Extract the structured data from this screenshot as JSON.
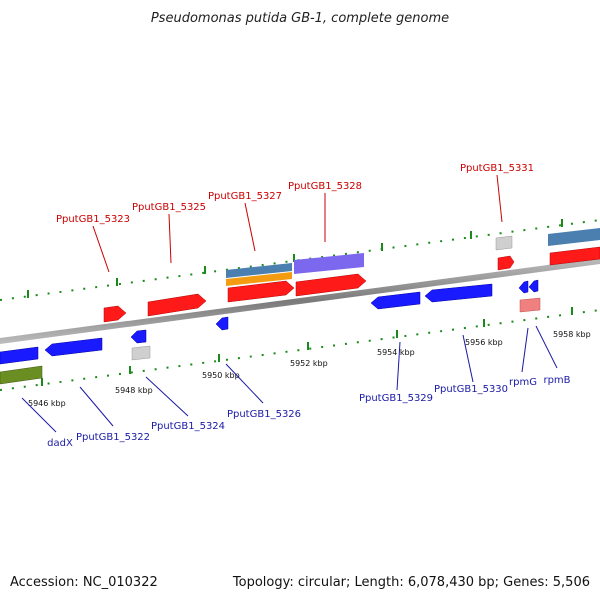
{
  "header": {
    "title": "Pseudomonas putida GB-1, complete genome"
  },
  "footer": {
    "accession": "Accession: NC_010322",
    "summary": "Topology: circular; Length: 6,078,430 bp; Genes: 5,506"
  },
  "ticks": [
    "5946 kbp",
    "5948 kbp",
    "5950 kbp",
    "5952 kbp",
    "5954 kbp",
    "5956 kbp",
    "5958 kbp"
  ],
  "genes_top": [
    "PputGB1_5323",
    "PputGB1_5325",
    "PputGB1_5327",
    "PputGB1_5328",
    "PputGB1_5331"
  ],
  "genes_bottom": [
    "dadX",
    "PputGB1_5322",
    "PputGB1_5324",
    "PputGB1_5326",
    "PputGB1_5329",
    "PputGB1_5330",
    "rpmG",
    "rpmB"
  ],
  "colors": {
    "forward_gene": "#ff1a1a",
    "reverse_gene": "#1a1aff",
    "backbone": "#8a8a8a",
    "tick": "#1a8a1a",
    "label_red": "#cc0000",
    "label_blue": "#1a1aa6"
  }
}
